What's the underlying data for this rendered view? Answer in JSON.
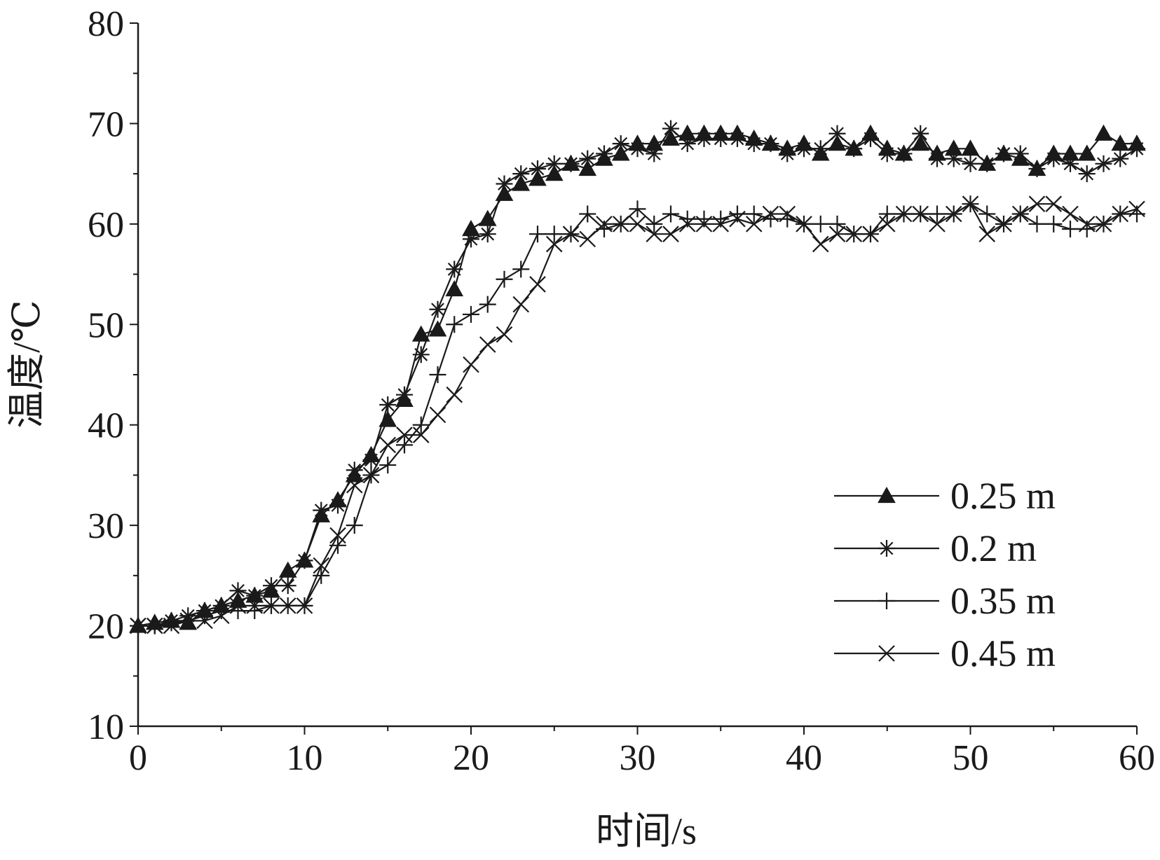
{
  "chart_data": {
    "type": "line",
    "title": "",
    "xlabel": "时间/s",
    "ylabel": "温度/℃",
    "xlim": [
      0,
      60
    ],
    "ylim": [
      10,
      80
    ],
    "xticks": [
      0,
      10,
      20,
      30,
      40,
      50,
      60
    ],
    "yticks": [
      10,
      20,
      30,
      40,
      50,
      60,
      70,
      80
    ],
    "legend_position": "bottom-right",
    "series": [
      {
        "name": "0.25 m",
        "marker": "triangle",
        "x": [
          0,
          1,
          2,
          3,
          4,
          5,
          6,
          7,
          8,
          9,
          10,
          11,
          12,
          13,
          14,
          15,
          16,
          17,
          18,
          19,
          20,
          21,
          22,
          23,
          24,
          25,
          26,
          27,
          28,
          29,
          30,
          31,
          32,
          33,
          34,
          35,
          36,
          37,
          38,
          39,
          40,
          41,
          42,
          43,
          44,
          45,
          46,
          47,
          48,
          49,
          50,
          51,
          52,
          53,
          54,
          55,
          56,
          57,
          58,
          59,
          60
        ],
        "y": [
          20,
          20.3,
          20.5,
          20.3,
          21.5,
          22,
          22.5,
          23,
          23.5,
          25.5,
          26.5,
          31,
          32.5,
          35,
          37,
          40.5,
          42.5,
          49,
          49.5,
          53.5,
          59.5,
          60.5,
          63,
          64,
          64.5,
          65,
          66,
          65.5,
          66.5,
          67,
          68,
          68,
          68.5,
          69,
          69,
          69,
          69,
          68.5,
          68,
          67.5,
          68,
          67,
          68,
          67.5,
          69,
          67.5,
          67,
          68,
          67,
          67.5,
          67.5,
          66,
          67,
          66.5,
          65.5,
          67,
          67,
          67,
          69,
          68,
          68
        ]
      },
      {
        "name": "0.2 m",
        "marker": "asterisk",
        "x": [
          0,
          1,
          2,
          3,
          4,
          5,
          6,
          7,
          8,
          9,
          10,
          11,
          12,
          13,
          14,
          15,
          16,
          17,
          18,
          19,
          20,
          21,
          22,
          23,
          24,
          25,
          26,
          27,
          28,
          29,
          30,
          31,
          32,
          33,
          34,
          35,
          36,
          37,
          38,
          39,
          40,
          41,
          42,
          43,
          44,
          45,
          46,
          47,
          48,
          49,
          50,
          51,
          52,
          53,
          54,
          55,
          56,
          57,
          58,
          59,
          60
        ],
        "y": [
          20,
          20,
          20.5,
          21,
          21.5,
          22,
          23.5,
          23,
          24,
          24,
          26.5,
          31.5,
          32,
          35.5,
          36.5,
          42,
          43,
          47,
          51.5,
          55.5,
          58.5,
          59,
          64,
          65,
          65.5,
          66,
          66,
          66.5,
          67,
          68,
          67.5,
          67,
          69.5,
          68,
          68.5,
          68.5,
          68.5,
          68,
          68,
          67,
          67.5,
          67.5,
          69,
          67.5,
          68.5,
          67,
          67,
          69,
          66.5,
          66.5,
          66,
          66,
          67,
          67,
          65.5,
          66.5,
          66,
          65,
          66,
          66.5,
          67.5
        ]
      },
      {
        "name": "0.35 m",
        "marker": "plus",
        "x": [
          0,
          1,
          2,
          3,
          4,
          5,
          6,
          7,
          8,
          9,
          10,
          11,
          12,
          13,
          14,
          15,
          16,
          17,
          18,
          19,
          20,
          21,
          22,
          23,
          24,
          25,
          26,
          27,
          28,
          29,
          30,
          31,
          32,
          33,
          34,
          35,
          36,
          37,
          38,
          39,
          40,
          41,
          42,
          43,
          44,
          45,
          46,
          47,
          48,
          49,
          50,
          51,
          52,
          53,
          54,
          55,
          56,
          57,
          58,
          59,
          60
        ],
        "y": [
          20,
          20,
          20.3,
          20.5,
          21,
          21.5,
          21.5,
          21.5,
          22,
          22,
          22,
          25,
          28,
          30,
          35,
          36,
          38,
          40,
          45,
          50,
          51,
          52,
          54.5,
          55.5,
          59,
          59,
          59,
          61,
          59.5,
          60,
          61.5,
          60,
          61,
          60.5,
          60.5,
          60.5,
          61,
          61,
          60.5,
          60.5,
          60,
          60,
          60,
          59,
          59,
          61,
          61,
          61,
          61,
          61,
          62,
          61,
          60,
          61,
          60,
          60,
          59.5,
          59.5,
          60,
          61,
          61
        ]
      },
      {
        "name": "0.45 m",
        "marker": "x",
        "x": [
          0,
          1,
          2,
          3,
          4,
          5,
          6,
          7,
          8,
          9,
          10,
          11,
          12,
          13,
          14,
          15,
          16,
          17,
          18,
          19,
          20,
          21,
          22,
          23,
          24,
          25,
          26,
          27,
          28,
          29,
          30,
          31,
          32,
          33,
          34,
          35,
          36,
          37,
          38,
          39,
          40,
          41,
          42,
          43,
          44,
          45,
          46,
          47,
          48,
          49,
          50,
          51,
          52,
          53,
          54,
          55,
          56,
          57,
          58,
          59,
          60
        ],
        "y": [
          20,
          20,
          20,
          20.5,
          20.5,
          21,
          22,
          22,
          22,
          22,
          22,
          26,
          29,
          34,
          35,
          38,
          39,
          39,
          41,
          43,
          46,
          48,
          49,
          52,
          54,
          58,
          59,
          58.5,
          60,
          60,
          60,
          59,
          59,
          60,
          60,
          60,
          60.5,
          60,
          61,
          61,
          60,
          58,
          59,
          59,
          59,
          60,
          61,
          61,
          60,
          61,
          62,
          59,
          60,
          61,
          62,
          62,
          61,
          60,
          60,
          61,
          61.5
        ]
      }
    ]
  }
}
